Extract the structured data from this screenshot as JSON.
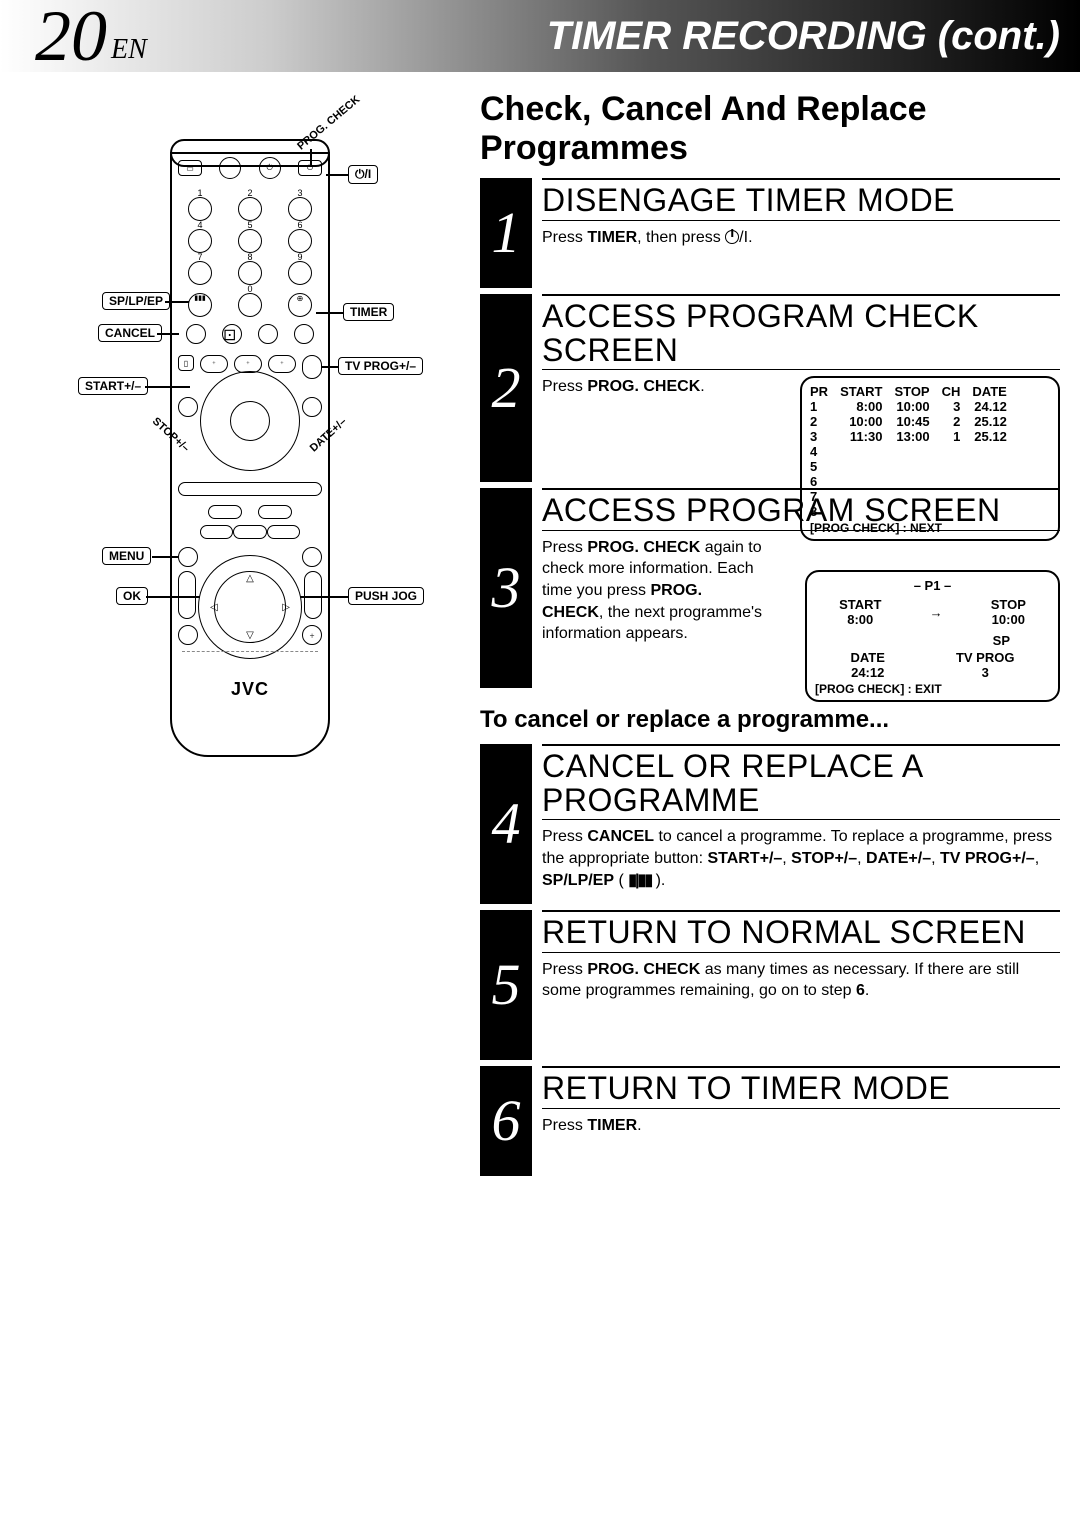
{
  "header": {
    "page_number": "20",
    "lang": "EN",
    "title": "TIMER RECORDING (cont.)"
  },
  "remote": {
    "brand": "JVC",
    "labels": {
      "prog_check": "PROG. CHECK",
      "power": "⏻/I",
      "sp_lp_ep": "SP/LP/EP",
      "timer": "TIMER",
      "cancel": "CANCEL",
      "tv_prog": "TV PROG+/–",
      "start": "START+/–",
      "stop": "STOP+/–",
      "date": "DATE+/–",
      "menu": "MENU",
      "ok": "OK",
      "push_jog": "PUSH JOG"
    },
    "numbers": [
      "1",
      "2",
      "3",
      "4",
      "5",
      "6",
      "7",
      "8",
      "9"
    ]
  },
  "section_title": "Check, Cancel And Replace Programmes",
  "steps": [
    {
      "num": "1",
      "heading": "DISENGAGE TIMER MODE",
      "text_pre": "Press ",
      "text_bold1": "TIMER",
      "text_mid": ", then press ",
      "text_bold2": "",
      "text_post": "."
    },
    {
      "num": "2",
      "heading": "ACCESS PROGRAM CHECK SCREEN",
      "text_pre": "Press ",
      "text_bold1": "PROG. CHECK",
      "text_post": ".",
      "osd": {
        "headers": [
          "PR",
          "START",
          "STOP",
          "CH",
          "DATE"
        ],
        "rows": [
          [
            "1",
            "8:00",
            "10:00",
            "3",
            "24.12"
          ],
          [
            "2",
            "10:00",
            "10:45",
            "2",
            "25.12"
          ],
          [
            "3",
            "11:30",
            "13:00",
            "1",
            "25.12"
          ],
          [
            "4",
            "",
            "",
            "",
            ""
          ],
          [
            "5",
            "",
            "",
            "",
            ""
          ],
          [
            "6",
            "",
            "",
            "",
            ""
          ],
          [
            "7",
            "",
            "",
            "",
            ""
          ],
          [
            "8",
            "",
            "",
            "",
            ""
          ]
        ],
        "footer": "[PROG CHECK] : NEXT"
      }
    },
    {
      "num": "3",
      "heading": "ACCESS PROGRAM SCREEN",
      "text_pre": "Press ",
      "text_bold1": "PROG. CHECK",
      "text_mid1": " again to check more information. Each time you press ",
      "text_bold2": "PROG. CHECK",
      "text_post": ", the next programme's information appears.",
      "osd2": {
        "title": "– P1 –",
        "start_label": "START",
        "start_val": "8:00",
        "arrow": "→",
        "stop_label": "STOP",
        "stop_val": "10:00",
        "sp": "SP",
        "date_label": "DATE",
        "date_val": "24:12",
        "tvprog_label": "TV PROG",
        "tvprog_val": "3",
        "footer": "[PROG CHECK] : EXIT"
      }
    }
  ],
  "sub_title": "To cancel or replace a programme...",
  "steps2": [
    {
      "num": "4",
      "heading": "CANCEL OR REPLACE A PROGRAMME",
      "text": "Press <b>CANCEL</b> to cancel a programme. To replace a programme, press the appropriate button: <b>START+/–</b>, <b>STOP+/–</b>, <b>DATE+/–</b>, <b>TV PROG+/–</b>, <b>SP/LP/EP</b> ( <span class='tape-icon'>▮|▮▮</span> )."
    },
    {
      "num": "5",
      "heading": "RETURN TO NORMAL SCREEN",
      "text": "Press <b>PROG. CHECK</b> as many times as necessary. If there are still some programmes remaining, go on to step <b>6</b>."
    },
    {
      "num": "6",
      "heading": "RETURN TO TIMER MODE",
      "text": "Press <b>TIMER</b>."
    }
  ]
}
